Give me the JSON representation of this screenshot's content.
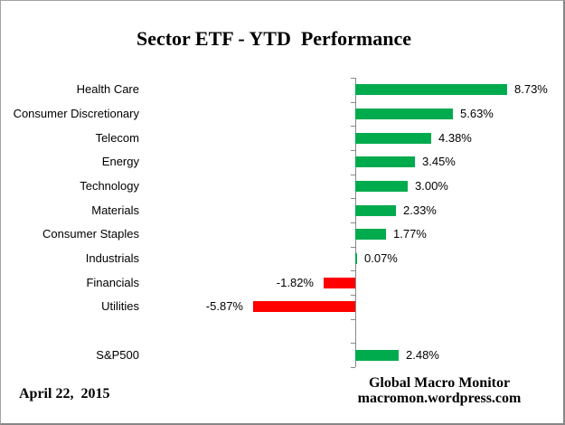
{
  "title": "Sector ETF - YTD  Performance",
  "footer": {
    "date": "April 22,  2015",
    "credit_line1": "Global Macro Monitor",
    "credit_line2": "macromon.wordpress.com"
  },
  "chart_data": {
    "type": "bar",
    "orientation": "horizontal",
    "title": "Sector ETF - YTD  Performance",
    "categories": [
      "Health Care",
      "Consumer Discretionary",
      "Telecom",
      "Energy",
      "Technology",
      "Materials",
      "Consumer Staples",
      "Industrials",
      "Financials",
      "Utilities",
      "S&P500"
    ],
    "values": [
      8.73,
      5.63,
      4.38,
      3.45,
      3.0,
      2.33,
      1.77,
      0.07,
      -1.82,
      -5.87,
      2.48
    ],
    "value_labels": [
      "8.73%",
      "5.63%",
      "4.38%",
      "3.45%",
      "3.00%",
      "2.33%",
      "1.77%",
      "0.07%",
      "-1.82%",
      "-5.87%",
      "2.48%"
    ],
    "gap_before_category": "S&P500",
    "xlim": [
      -6.5,
      9.5
    ],
    "grid": false,
    "legend": false,
    "colors": {
      "positive_bar": "#00AB4E",
      "negative_bar": "#FF0000",
      "axis": "#898989",
      "text": "#000000"
    }
  }
}
